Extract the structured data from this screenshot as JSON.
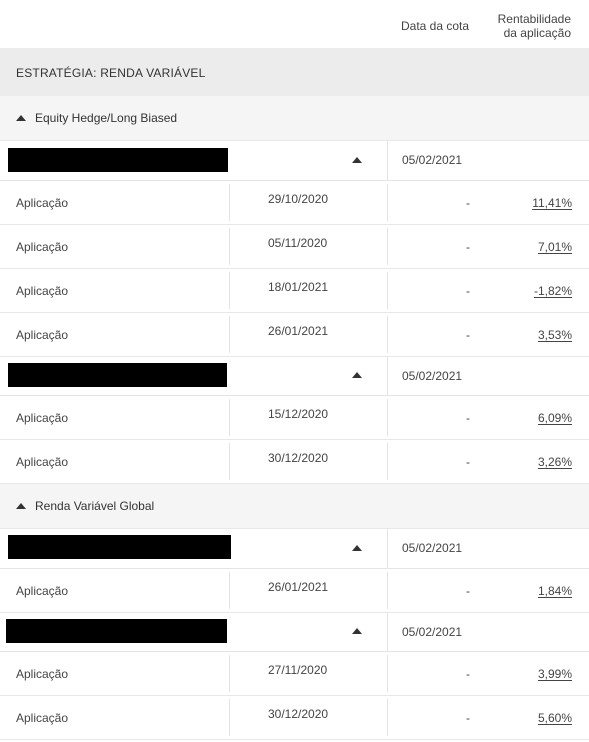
{
  "header": {
    "col_cota": "Data da cota",
    "col_rent_line1": "Rentabilidade",
    "col_rent_line2": "da aplicação"
  },
  "strategy": {
    "label": "ESTRATÉGIA: RENDA VARIÁVEL"
  },
  "groups": [
    {
      "label": "Equity Hedge/Long Biased",
      "funds": [
        {
          "date": "05/02/2021",
          "applications": [
            {
              "type": "Aplicação",
              "date": "29/10/2020",
              "cota": "-",
              "rent": "11,41%"
            },
            {
              "type": "Aplicação",
              "date": "05/11/2020",
              "cota": "-",
              "rent": "7,01%"
            },
            {
              "type": "Aplicação",
              "date": "18/01/2021",
              "cota": "-",
              "rent": "-1,82%"
            },
            {
              "type": "Aplicação",
              "date": "26/01/2021",
              "cota": "-",
              "rent": "3,53%"
            }
          ]
        },
        {
          "date": "05/02/2021",
          "applications": [
            {
              "type": "Aplicação",
              "date": "15/12/2020",
              "cota": "-",
              "rent": "6,09%"
            },
            {
              "type": "Aplicação",
              "date": "30/12/2020",
              "cota": "-",
              "rent": "3,26%"
            }
          ]
        }
      ]
    },
    {
      "label": "Renda Variável Global",
      "funds": [
        {
          "date": "05/02/2021",
          "applications": [
            {
              "type": "Aplicação",
              "date": "26/01/2021",
              "cota": "-",
              "rent": "1,84%"
            }
          ]
        },
        {
          "date": "05/02/2021",
          "applications": [
            {
              "type": "Aplicação",
              "date": "27/11/2020",
              "cota": "-",
              "rent": "3,99%"
            },
            {
              "type": "Aplicação",
              "date": "30/12/2020",
              "cota": "-",
              "rent": "5,60%"
            }
          ]
        }
      ]
    }
  ]
}
